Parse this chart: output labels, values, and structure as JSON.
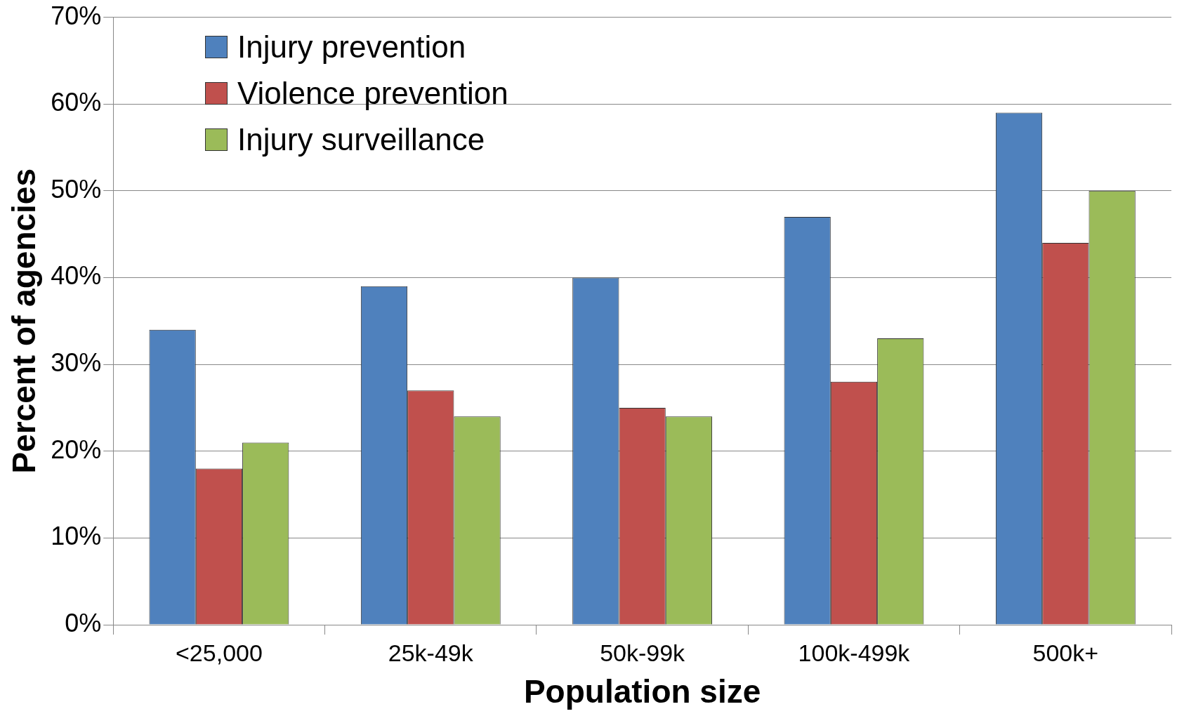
{
  "chart_data": {
    "type": "bar",
    "xlabel": "Population size",
    "ylabel": "Percent of agencies",
    "categories": [
      "<25,000",
      "25k-49k",
      "50k-99k",
      "100k-499k",
      "500k+"
    ],
    "series": [
      {
        "name": "Injury prevention",
        "color": "#4f81bd",
        "values": [
          34,
          39,
          40,
          47,
          59
        ]
      },
      {
        "name": "Violence prevention",
        "color": "#c0504d",
        "values": [
          18,
          27,
          25,
          28,
          44
        ]
      },
      {
        "name": "Injury surveillance",
        "color": "#9bbb59",
        "values": [
          21,
          24,
          24,
          33,
          50
        ]
      }
    ],
    "ylim": [
      0,
      70
    ],
    "yticks": [
      {
        "value": 0,
        "label": "0%"
      },
      {
        "value": 10,
        "label": "10%"
      },
      {
        "value": 20,
        "label": "20%"
      },
      {
        "value": 30,
        "label": "30%"
      },
      {
        "value": 40,
        "label": "40%"
      },
      {
        "value": 50,
        "label": "50%"
      },
      {
        "value": 60,
        "label": "60%"
      },
      {
        "value": 70,
        "label": "70%"
      }
    ],
    "grid": "y",
    "legend": "top left"
  }
}
